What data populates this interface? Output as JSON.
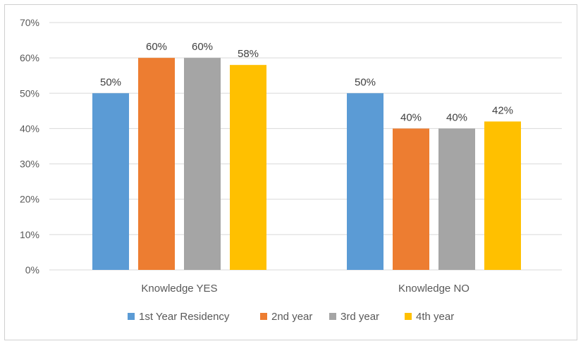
{
  "chart_data": {
    "type": "bar",
    "title": "",
    "xlabel": "",
    "ylabel": "",
    "categories": [
      "Knowledge YES",
      "Knowledge NO"
    ],
    "series": [
      {
        "name": "1st Year Residency",
        "values": [
          50,
          50
        ],
        "color": "#5b9bd5"
      },
      {
        "name": "2nd year",
        "values": [
          60,
          40
        ],
        "color": "#ed7d31"
      },
      {
        "name": "3rd year",
        "values": [
          60,
          40
        ],
        "color": "#a5a5a5"
      },
      {
        "name": "4th year",
        "values": [
          58,
          42
        ],
        "color": "#ffc000"
      }
    ],
    "ylim": [
      0,
      70
    ],
    "yticks": [
      0,
      10,
      20,
      30,
      40,
      50,
      60,
      70
    ],
    "tick_suffix": "%",
    "data_labels": true,
    "grid": true,
    "legend": "bottom",
    "colors": {
      "grid": "#d9d9d9",
      "text": "#595959",
      "label": "#404040"
    }
  }
}
